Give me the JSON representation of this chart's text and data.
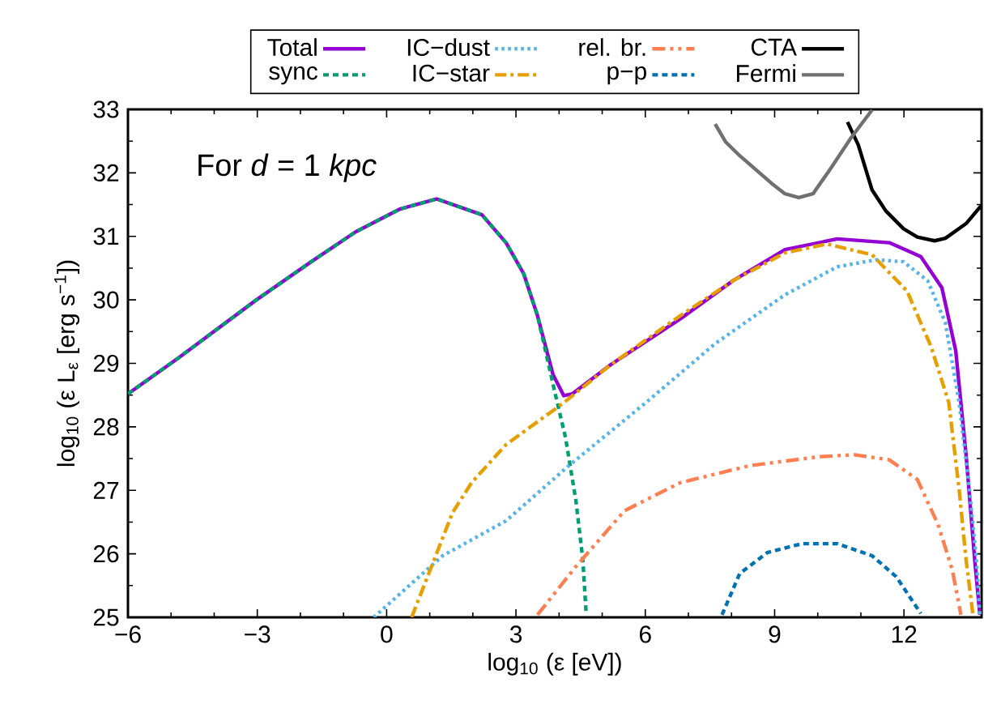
{
  "chart_data": {
    "type": "line",
    "xlabel": "log$_{10}$ (ε [eV])",
    "ylabel": "log$_{10}$ (ε L$_{ε}$ [erg s$^{−1}$])",
    "annotations": [
      "For *d* = 1 *kpc*"
    ],
    "xlim": [
      -6,
      13.8
    ],
    "ylim": [
      25,
      33
    ],
    "xticks": [
      {
        "value": -6,
        "label": "−6"
      },
      {
        "value": -3,
        "label": "−3"
      },
      0,
      3,
      6,
      9,
      12
    ],
    "yticks": [
      25,
      26,
      27,
      28,
      29,
      30,
      31,
      32,
      33
    ],
    "legend": "top",
    "marker": "none",
    "series": [
      {
        "name": "Total",
        "color": "#9400d3",
        "line_style": "solid",
        "x": [
          -6,
          -4.82,
          -3.02,
          -1.75,
          -0.72,
          0.31,
          1.16,
          2.21,
          2.77,
          3.18,
          3.5,
          3.86,
          4.11,
          4.31,
          5.2,
          6.81,
          8.03,
          9.24,
          10.45,
          11.66,
          12.39,
          12.88,
          13.2,
          13.44,
          13.64,
          13.76
        ],
        "values": [
          28.52,
          29.09,
          30.0,
          30.6,
          31.07,
          31.43,
          31.59,
          31.34,
          30.9,
          30.41,
          29.75,
          28.82,
          28.49,
          28.52,
          28.98,
          29.7,
          30.3,
          30.79,
          30.96,
          30.9,
          30.68,
          30.19,
          29.2,
          27.56,
          25.91,
          25.04
        ]
      },
      {
        "name": "sync",
        "color": "#009e73",
        "line_style": "dashed",
        "x": [
          -6,
          -4.82,
          -3.02,
          -1.75,
          -0.72,
          0.31,
          1.16,
          2.21,
          2.77,
          3.18,
          3.5,
          3.9,
          4.15,
          4.39,
          4.55,
          4.63
        ],
        "values": [
          28.52,
          29.09,
          30.0,
          30.6,
          31.07,
          31.43,
          31.59,
          31.34,
          30.9,
          30.41,
          29.75,
          28.55,
          27.83,
          26.84,
          25.91,
          25.04
        ]
      },
      {
        "name": "IC−dust",
        "color": "#56b4e9",
        "line_style": "dotted",
        "x": [
          -0.3,
          1.3,
          2.77,
          4.23,
          6.01,
          7.62,
          9.24,
          10.45,
          11.34,
          11.99,
          12.55,
          12.96,
          13.28,
          13.52,
          13.68,
          13.76
        ],
        "values": [
          25.0,
          25.97,
          26.52,
          27.39,
          28.38,
          29.31,
          30.08,
          30.52,
          30.63,
          30.6,
          30.3,
          29.64,
          28.38,
          27.01,
          25.91,
          25.04
        ]
      },
      {
        "name": "IC−star",
        "color": "#e69f00",
        "line_style": "dashdot",
        "x": [
          0.58,
          1.53,
          1.97,
          2.77,
          4.11,
          5.2,
          6.81,
          8.03,
          9.24,
          10.21,
          11.26,
          12.07,
          12.63,
          13.04,
          13.28,
          13.44,
          13.6
        ],
        "values": [
          25.0,
          26.65,
          27.12,
          27.72,
          28.38,
          28.98,
          29.75,
          30.3,
          30.74,
          30.88,
          30.71,
          30.14,
          29.26,
          28.38,
          27.01,
          25.91,
          25.04
        ]
      },
      {
        "name": "rel. br.",
        "color": "#ff7f50",
        "line_style": "dashdotdot",
        "x": [
          3.5,
          4.39,
          5.52,
          6.81,
          8.43,
          10.05,
          10.85,
          11.66,
          12.31,
          12.79,
          13.12,
          13.32
        ],
        "values": [
          25.04,
          25.8,
          26.68,
          27.12,
          27.39,
          27.53,
          27.56,
          27.48,
          27.17,
          26.46,
          25.75,
          25.04
        ]
      },
      {
        "name": "p−p",
        "color": "#0072b2",
        "line_style": "dashed",
        "x": [
          7.78,
          8.19,
          8.83,
          9.64,
          10.45,
          11.26,
          11.82,
          12.39
        ],
        "values": [
          25.04,
          25.69,
          26.02,
          26.16,
          26.16,
          25.97,
          25.64,
          25.06
        ]
      },
      {
        "name": "CTA",
        "color": "#000000",
        "line_style": "solid",
        "x": [
          10.69,
          10.94,
          11.26,
          11.58,
          11.99,
          12.31,
          12.71,
          12.96,
          13.44,
          13.8
        ],
        "values": [
          32.8,
          32.44,
          31.73,
          31.4,
          31.12,
          30.99,
          30.93,
          30.97,
          31.2,
          31.49
        ]
      },
      {
        "name": "Fermi",
        "color": "#707070",
        "line_style": "solid",
        "x": [
          7.62,
          7.86,
          8.19,
          8.92,
          9.24,
          9.56,
          9.89,
          10.29,
          10.77,
          11.26
        ],
        "values": [
          32.77,
          32.49,
          32.27,
          31.84,
          31.67,
          31.61,
          31.67,
          32.06,
          32.55,
          32.99
        ]
      }
    ]
  }
}
